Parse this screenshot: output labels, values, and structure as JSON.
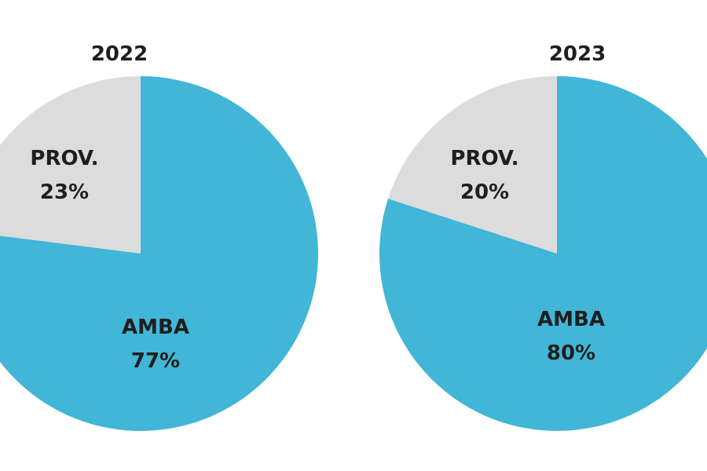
{
  "chart_data": [
    {
      "type": "pie",
      "title": "2022",
      "slices": [
        {
          "label": "PROV.",
          "value": 23,
          "value_label": "23%",
          "color": "#dcdcdc"
        },
        {
          "label": "AMBA",
          "value": 77,
          "value_label": "77%",
          "color": "#41b6d6"
        }
      ]
    },
    {
      "type": "pie",
      "title": "2023",
      "slices": [
        {
          "label": "PROV.",
          "value": 20,
          "value_label": "20%",
          "color": "#dcdcdc"
        },
        {
          "label": "AMBA",
          "value": 80,
          "value_label": "80%",
          "color": "#41b6d6"
        }
      ]
    }
  ]
}
